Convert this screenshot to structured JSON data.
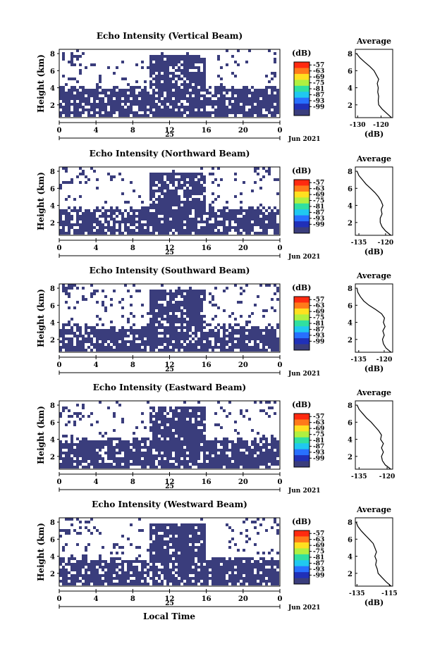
{
  "figure": {
    "xlabel": "Local Time",
    "date_label": "Jun 2021",
    "day_label": "25",
    "colorbar_unit": "(dB)",
    "colorbar_ticks": [
      "-57",
      "-63",
      "-69",
      "-75",
      "-81",
      "-87",
      "-93",
      "-99"
    ],
    "colorbar_colors": [
      "#ff2a10",
      "#ff7a1a",
      "#ffe020",
      "#b0f040",
      "#30e0a0",
      "#20c8f0",
      "#2870ff",
      "#2030b8",
      "#3a3d7c"
    ],
    "heatmap_fill": "#3a3d7c",
    "profile_xlabel": "(dB)",
    "profile_title": "Average"
  },
  "chart_data": [
    {
      "type": "heatmap",
      "title": "Echo Intensity (Vertical Beam)",
      "ylabel": "Height (km)",
      "x_ticks": [
        "0",
        "4",
        "8",
        "12",
        "16",
        "20",
        "0"
      ],
      "y_ticks": [
        "8",
        "6",
        "4",
        "2"
      ],
      "ylim": [
        0.5,
        8.5
      ],
      "xlim": [
        0,
        24
      ],
      "clim": [
        -99,
        -57
      ],
      "profile": {
        "title": "Average",
        "x_ticks": [
          "-130",
          "-120"
        ],
        "xlim": [
          -131,
          -115
        ],
        "heights": [
          0.5,
          1.0,
          1.5,
          2.0,
          2.5,
          3.0,
          3.5,
          4.0,
          4.5,
          5.0,
          5.5,
          6.0,
          6.5,
          7.0,
          7.5,
          8.0
        ],
        "values": [
          -115.5,
          -117.5,
          -119.5,
          -121.0,
          -121.2,
          -121.0,
          -121.4,
          -121.2,
          -121.6,
          -121.0,
          -122.0,
          -123.0,
          -124.8,
          -127.0,
          -129.0,
          -130.5
        ]
      }
    },
    {
      "type": "heatmap",
      "title": "Echo Intensity (Northward Beam)",
      "ylabel": "Height (km)",
      "x_ticks": [
        "0",
        "4",
        "8",
        "12",
        "16",
        "20",
        "0"
      ],
      "y_ticks": [
        "8",
        "6",
        "4",
        "2"
      ],
      "ylim": [
        0.5,
        8.5
      ],
      "xlim": [
        0,
        24
      ],
      "clim": [
        -99,
        -57
      ],
      "profile": {
        "title": "Average",
        "x_ticks": [
          "-135",
          "-120"
        ],
        "xlim": [
          -137,
          -116
        ],
        "heights": [
          0.5,
          1.0,
          1.5,
          2.0,
          2.5,
          3.0,
          3.5,
          4.0,
          4.5,
          5.0,
          5.5,
          6.0,
          6.5,
          7.0,
          7.5,
          8.0
        ],
        "values": [
          -117.0,
          -120.0,
          -122.0,
          -123.0,
          -123.0,
          -122.0,
          -122.5,
          -121.5,
          -122.5,
          -124.0,
          -126.0,
          -128.5,
          -131.0,
          -133.0,
          -135.0,
          -136.0
        ]
      }
    },
    {
      "type": "heatmap",
      "title": "Echo Intensity (Southward Beam)",
      "ylabel": "Height (km)",
      "x_ticks": [
        "0",
        "4",
        "8",
        "12",
        "16",
        "20",
        "0"
      ],
      "y_ticks": [
        "8",
        "6",
        "4",
        "2"
      ],
      "ylim": [
        0.5,
        8.5
      ],
      "xlim": [
        0,
        24
      ],
      "clim": [
        -99,
        -57
      ],
      "profile": {
        "title": "Average",
        "x_ticks": [
          "-135",
          "-120"
        ],
        "xlim": [
          -137,
          -115
        ],
        "heights": [
          0.5,
          1.0,
          1.5,
          2.0,
          2.5,
          3.0,
          3.5,
          4.0,
          4.5,
          5.0,
          5.5,
          6.0,
          6.5,
          7.0,
          7.5,
          8.0
        ],
        "values": [
          -116.0,
          -119.0,
          -120.5,
          -121.0,
          -120.0,
          -120.8,
          -119.5,
          -120.5,
          -119.8,
          -121.5,
          -125.0,
          -129.0,
          -132.0,
          -134.0,
          -135.5,
          -136.0
        ]
      }
    },
    {
      "type": "heatmap",
      "title": "Echo Intensity (Eastward Beam)",
      "ylabel": "Height (km)",
      "x_ticks": [
        "0",
        "4",
        "8",
        "12",
        "16",
        "20",
        "0"
      ],
      "y_ticks": [
        "8",
        "6",
        "4",
        "2"
      ],
      "ylim": [
        0.5,
        8.5
      ],
      "xlim": [
        0,
        24
      ],
      "clim": [
        -99,
        -57
      ],
      "profile": {
        "title": "Average",
        "x_ticks": [
          "-135",
          "-120"
        ],
        "xlim": [
          -137,
          -117
        ],
        "heights": [
          0.5,
          1.0,
          1.5,
          2.0,
          2.5,
          3.0,
          3.5,
          4.0,
          4.5,
          5.0,
          5.5,
          6.0,
          6.5,
          7.0,
          7.5,
          8.0
        ],
        "values": [
          -118.0,
          -121.0,
          -122.5,
          -123.0,
          -122.0,
          -123.0,
          -122.0,
          -123.5,
          -123.0,
          -124.5,
          -126.5,
          -128.5,
          -131.0,
          -133.0,
          -135.0,
          -136.0
        ]
      }
    },
    {
      "type": "heatmap",
      "title": "Echo Intensity (Westward Beam)",
      "ylabel": "Height (km)",
      "x_ticks": [
        "0",
        "4",
        "8",
        "12",
        "16",
        "20",
        "0"
      ],
      "y_ticks": [
        "8",
        "6",
        "4",
        "2"
      ],
      "ylim": [
        0.5,
        8.5
      ],
      "xlim": [
        0,
        24
      ],
      "clim": [
        -99,
        -57
      ],
      "profile": {
        "title": "Average",
        "x_ticks": [
          "-135",
          "-115"
        ],
        "xlim": [
          -136,
          -113
        ],
        "heights": [
          0.5,
          1.0,
          1.5,
          2.0,
          2.5,
          3.0,
          3.5,
          4.0,
          4.5,
          5.0,
          5.5,
          6.0,
          6.5,
          7.0,
          7.5,
          8.0
        ],
        "values": [
          -114.0,
          -117.0,
          -119.5,
          -122.0,
          -122.5,
          -123.5,
          -123.0,
          -124.0,
          -123.0,
          -124.0,
          -125.0,
          -127.5,
          -130.0,
          -132.5,
          -134.5,
          -135.5
        ]
      }
    }
  ]
}
